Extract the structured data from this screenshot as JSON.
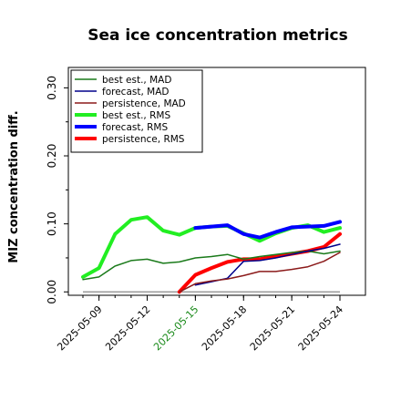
{
  "chart_data": {
    "type": "line",
    "title": "Sea ice concentration metrics",
    "xlabel": "",
    "ylabel": "MIZ concentration diff.",
    "ylim": [
      -0.005,
      0.33
    ],
    "yticks": [
      "0.00",
      "0.10",
      "0.20",
      "0.30"
    ],
    "ytick_values": [
      0.0,
      0.1,
      0.2,
      0.3
    ],
    "x": [
      "2025-05-08",
      "2025-05-09",
      "2025-05-10",
      "2025-05-11",
      "2025-05-12",
      "2025-05-13",
      "2025-05-14",
      "2025-05-15",
      "2025-05-16",
      "2025-05-17",
      "2025-05-18",
      "2025-05-19",
      "2025-05-20",
      "2025-05-21",
      "2025-05-22",
      "2025-05-23",
      "2025-05-24"
    ],
    "xticks": [
      {
        "label": "2025-05-09",
        "highlight": false
      },
      {
        "label": "2025-05-12",
        "highlight": false
      },
      {
        "label": "2025-05-15",
        "highlight": true
      },
      {
        "label": "2025-05-18",
        "highlight": false
      },
      {
        "label": "2025-05-21",
        "highlight": false
      },
      {
        "label": "2025-05-24",
        "highlight": false
      }
    ],
    "grid": false,
    "legend_position": "top-left",
    "reference_line": 0.0,
    "series": [
      {
        "name": "best est., MAD",
        "color": "#1a7a1a",
        "width": 1.5,
        "values": [
          0.018,
          0.022,
          0.038,
          0.046,
          0.048,
          0.042,
          0.044,
          0.05,
          0.052,
          0.055,
          0.048,
          0.052,
          0.055,
          0.058,
          0.06,
          0.056,
          0.06
        ]
      },
      {
        "name": "forecast,  MAD",
        "color": "#00008b",
        "width": 1.5,
        "values": [
          null,
          null,
          null,
          null,
          null,
          null,
          null,
          0.01,
          0.015,
          0.02,
          0.045,
          0.046,
          0.05,
          0.055,
          0.06,
          0.064,
          0.07
        ]
      },
      {
        "name": "persistence, MAD",
        "color": "#8b1a1a",
        "width": 1.5,
        "values": [
          null,
          null,
          null,
          null,
          null,
          null,
          0.0,
          0.012,
          0.016,
          0.019,
          0.024,
          0.03,
          0.03,
          0.033,
          0.037,
          0.045,
          0.058
        ]
      },
      {
        "name": "best est., RMS",
        "color": "#22ee22",
        "width": 4,
        "values": [
          0.022,
          0.035,
          0.085,
          0.106,
          0.11,
          0.09,
          0.084,
          0.094,
          0.096,
          0.097,
          0.086,
          0.075,
          0.086,
          0.094,
          0.098,
          0.088,
          0.094
        ]
      },
      {
        "name": "forecast,  RMS",
        "color": "#0000ff",
        "width": 4,
        "values": [
          null,
          null,
          null,
          null,
          null,
          null,
          null,
          0.094,
          0.096,
          0.098,
          0.085,
          0.08,
          0.088,
          0.095,
          0.096,
          0.097,
          0.103
        ]
      },
      {
        "name": "persistence, RMS",
        "color": "#ff0000",
        "width": 4,
        "values": [
          null,
          null,
          null,
          null,
          null,
          null,
          0.0,
          0.025,
          0.035,
          0.044,
          0.048,
          0.048,
          0.052,
          0.056,
          0.06,
          0.066,
          0.085
        ]
      }
    ]
  }
}
